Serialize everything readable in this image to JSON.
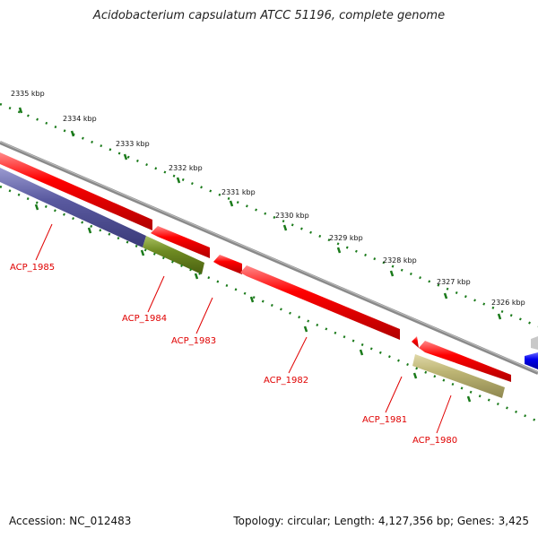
{
  "title": "Acidobacterium capsulatum ATCC 51196, complete genome",
  "accession": "Accession: NC_012483",
  "topology": "Topology: circular; Length: 4,127,356 bp; Genes: 3,425",
  "colors": {
    "backbone": "#8a8a8a",
    "cds_red": "#f00000",
    "tick_green": "#1a7a1a",
    "label_red": "#e00000",
    "purple": "#5a5aa0",
    "olive_dark": "#6e8a22",
    "olive_light": "#b8b070",
    "blue": "#0000ee"
  },
  "scale_labels": [
    "2335 kbp",
    "2334 kbp",
    "2333 kbp",
    "2332 kbp",
    "2331 kbp",
    "2330 kbp",
    "2329 kbp",
    "2328 kbp",
    "2327 kbp",
    "2326 kbp"
  ],
  "genes": [
    "ACP_1985",
    "ACP_1984",
    "ACP_1983",
    "ACP_1982",
    "ACP_1981",
    "ACP_1980"
  ]
}
